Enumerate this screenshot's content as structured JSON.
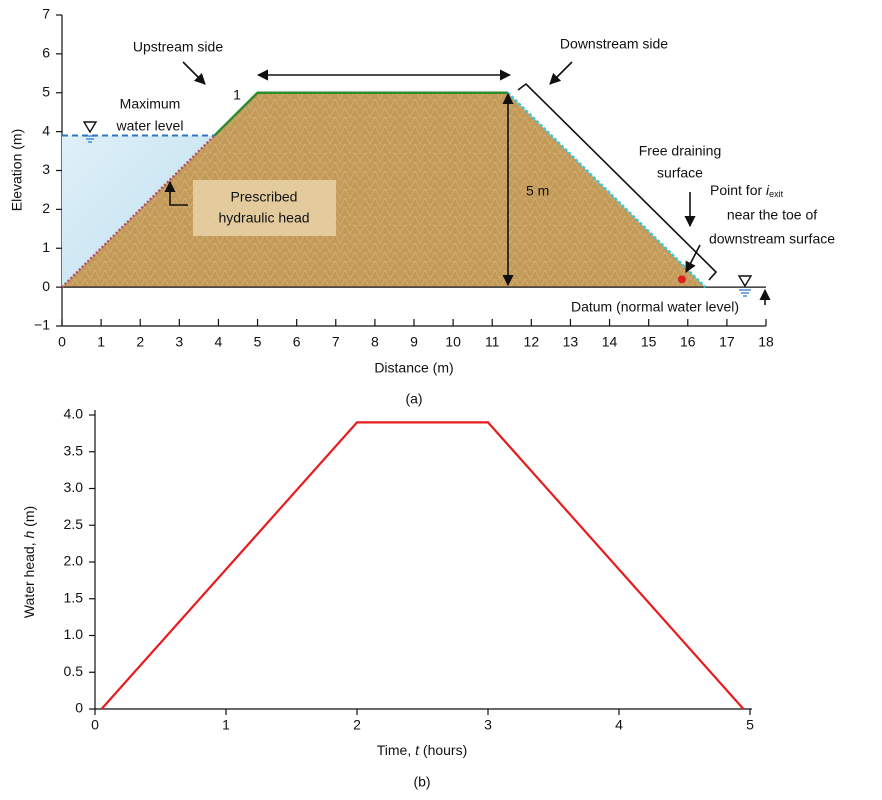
{
  "chart_data": [
    {
      "type": "section",
      "xlabel": "Distance (m)",
      "ylabel": "Elevation (m)",
      "caption": "(a)",
      "xlim": [
        0,
        18
      ],
      "ylim": [
        -1,
        7
      ],
      "xticks": [
        0,
        1,
        2,
        3,
        4,
        5,
        6,
        7,
        8,
        9,
        10,
        11,
        12,
        13,
        14,
        15,
        16,
        17,
        18
      ],
      "yticks": [
        {
          "value": -1,
          "label": "−1"
        },
        0,
        1,
        2,
        3,
        4,
        5,
        6,
        7
      ],
      "section": {
        "x": [
          0,
          5,
          11.4,
          16.45
        ],
        "y": [
          0,
          5,
          5,
          0
        ],
        "color": "#c49a58"
      },
      "water_level": {
        "x": [
          0,
          3.9
        ],
        "y": [
          3.9,
          3.9
        ],
        "color": "#2e75c8"
      },
      "exit_point": {
        "x": 15.85,
        "y": 0.2,
        "color": "#e02020"
      },
      "annotations": {
        "upstream": "Upstream side",
        "downstream": "Downstream side",
        "slope": "1",
        "max_water": [
          "Maximum",
          "water level"
        ],
        "head": [
          "Prescribed",
          "hydraulic head"
        ],
        "height": "5 m",
        "drain": [
          "Free draining",
          "surface"
        ],
        "exit": {
          "prefix": "Point for ",
          "symbol": "i",
          "subscript": "exit",
          "lines": [
            "near the toe of",
            "downstream surface"
          ]
        },
        "datum": "Datum (normal water level)"
      }
    },
    {
      "type": "line",
      "xlabel": [
        "Time, ",
        "t",
        " (hours)"
      ],
      "ylabel": [
        "Water head, ",
        "h",
        " (m)"
      ],
      "caption": "(b)",
      "x": [
        0.05,
        2,
        3,
        4.95
      ],
      "values": [
        0,
        3.9,
        3.9,
        0
      ],
      "color": "#e81c1c",
      "xlim": [
        0,
        5
      ],
      "ylim": [
        0,
        4
      ],
      "xticks": [
        0,
        1,
        2,
        3,
        4,
        5
      ],
      "yticks": [
        0,
        0.5,
        {
          "value": 1,
          "label": "1.0"
        },
        1.5,
        {
          "value": 2,
          "label": "2.0"
        },
        2.5,
        {
          "value": 3,
          "label": "3.0"
        },
        3.5,
        {
          "value": 4,
          "label": "4.0"
        }
      ]
    }
  ]
}
